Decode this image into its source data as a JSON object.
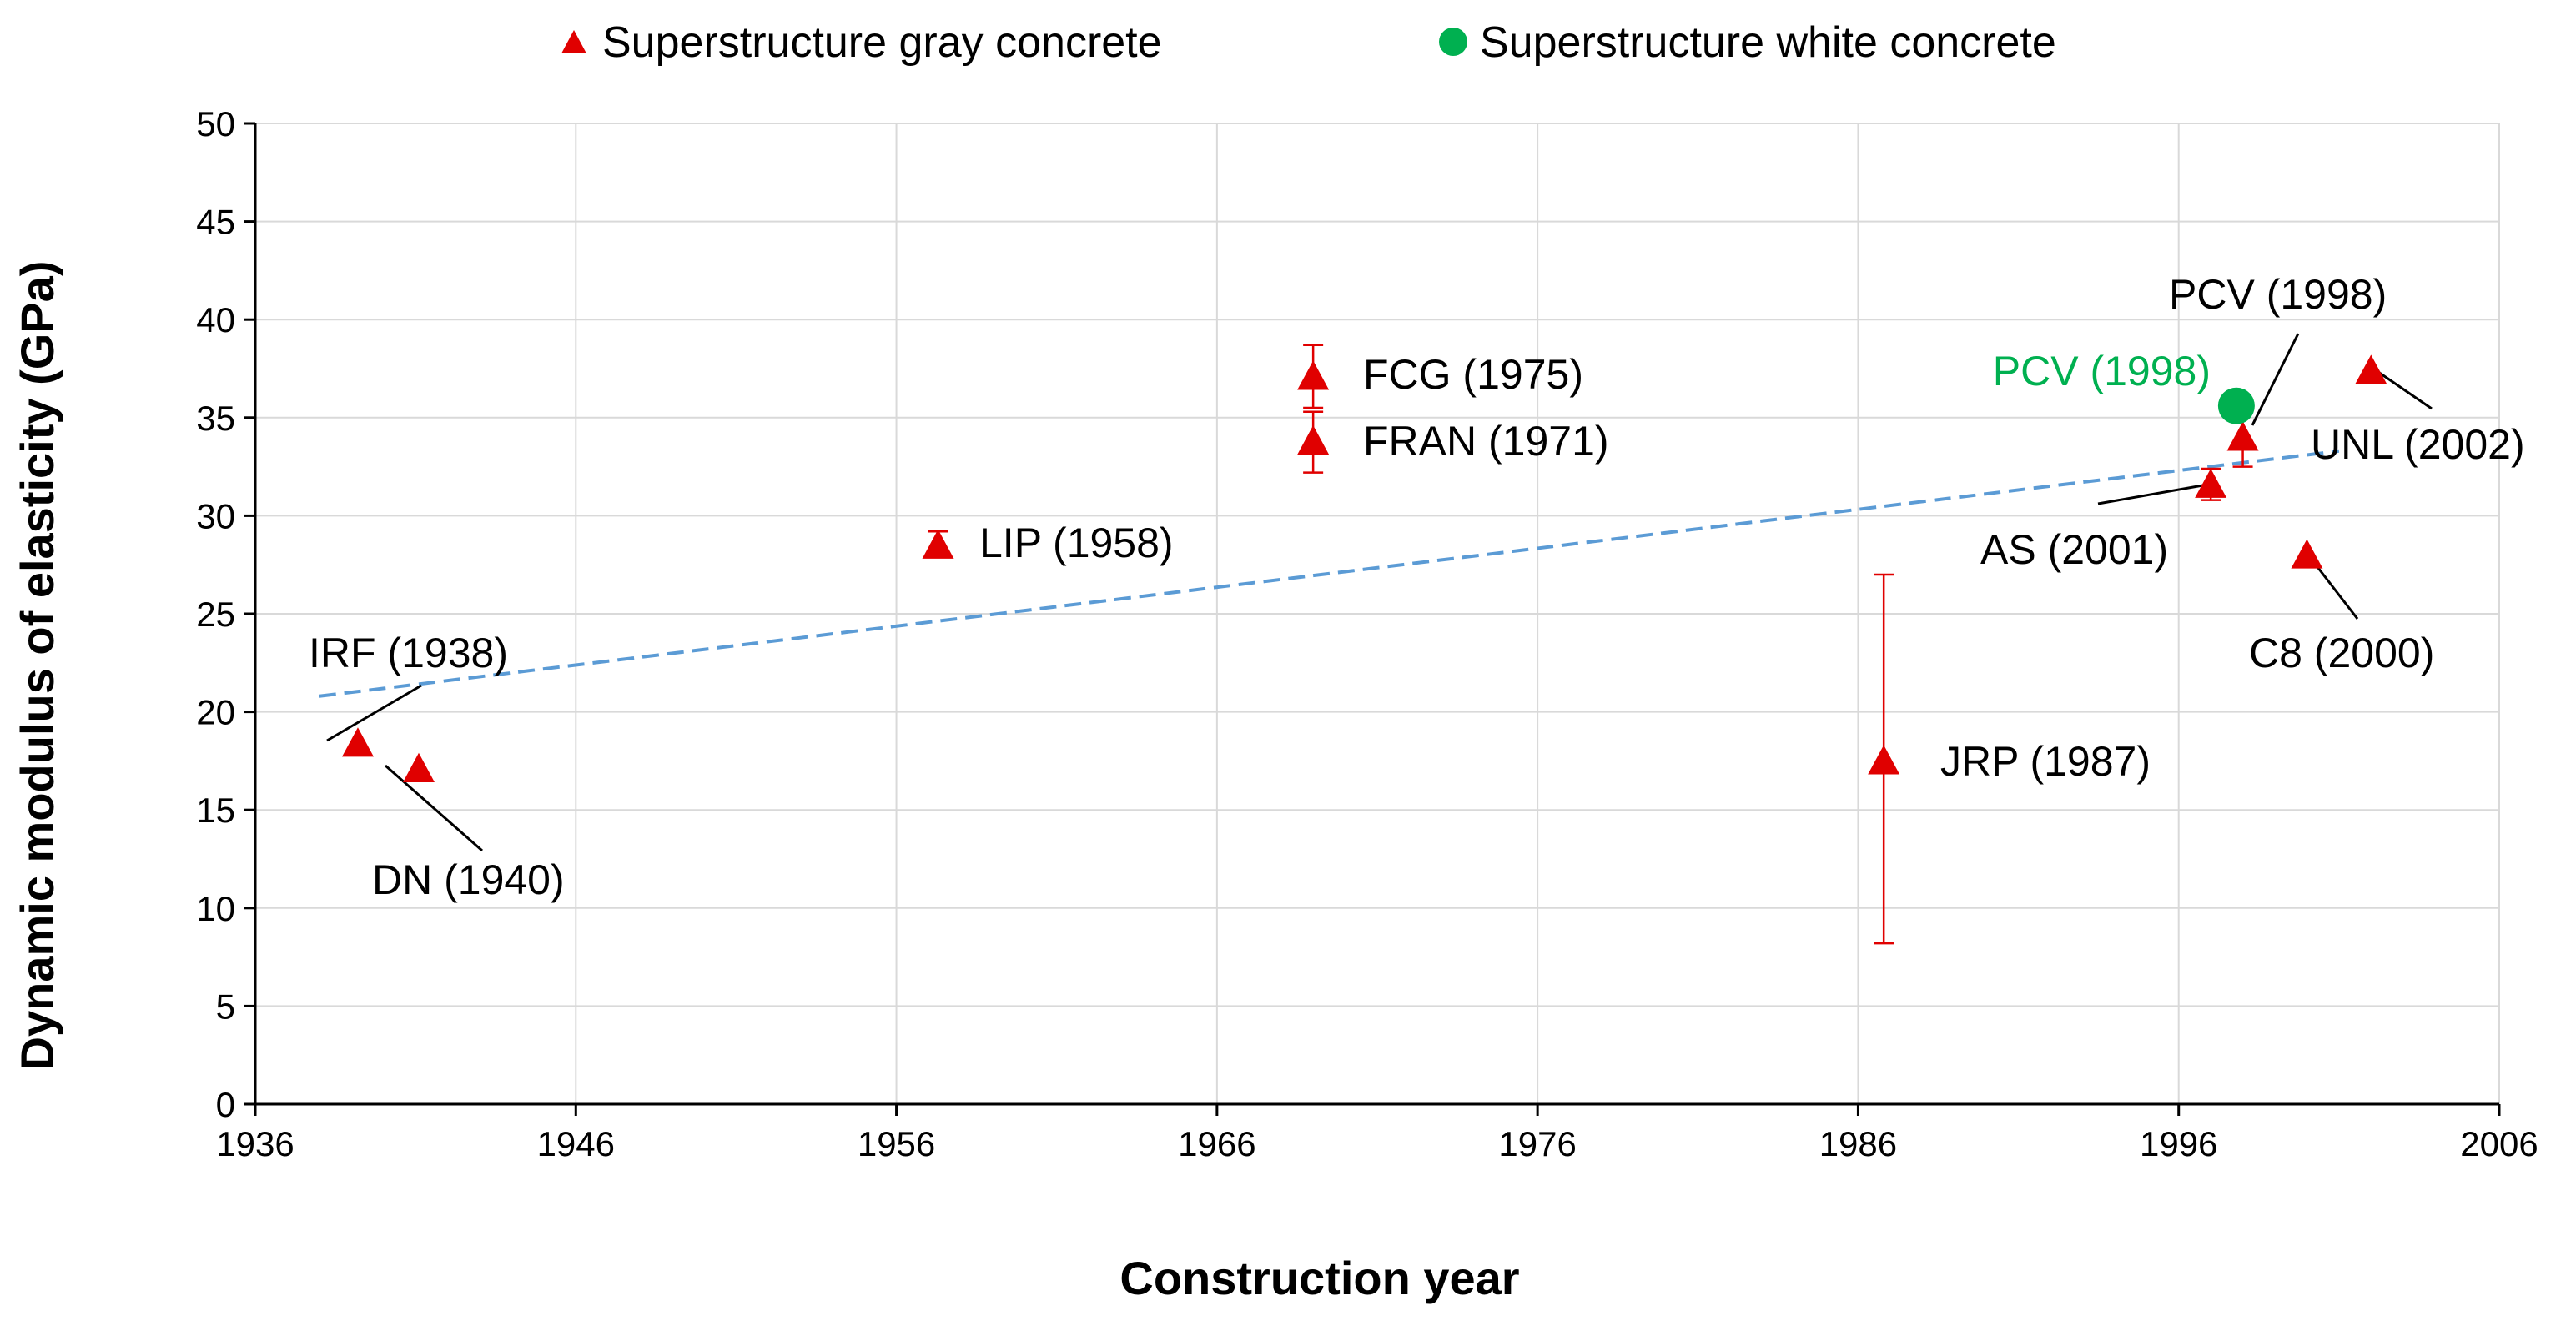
{
  "chart_data": {
    "type": "scatter",
    "title": "",
    "xlabel": "Construction year",
    "ylabel": "Dynamic modulus of elasticity (GPa)",
    "xlim": [
      1936,
      2006
    ],
    "ylim": [
      0,
      50
    ],
    "xticks": [
      1936,
      1946,
      1956,
      1966,
      1976,
      1986,
      1996,
      2006
    ],
    "yticks": [
      0,
      5,
      10,
      15,
      20,
      25,
      30,
      35,
      40,
      45,
      50
    ],
    "grid": true,
    "legend_position": "top",
    "colors": {
      "gray_series": "#e00000",
      "white_series": "#00b050",
      "trend": "#5b9bd5",
      "grid": "#d9d9d9"
    },
    "series": [
      {
        "name": "Superstructure gray concrete",
        "marker": "triangle",
        "points": [
          {
            "x": 1939.2,
            "y": 18.4,
            "label": "IRF (1938)"
          },
          {
            "x": 1941.1,
            "y": 17.1,
            "label": "DN (1940)"
          },
          {
            "x": 1957.3,
            "y": 28.5,
            "label": "LIP (1958)",
            "err_low": 28.0,
            "err_high": 29.2
          },
          {
            "x": 1969.0,
            "y": 37.1,
            "label": "FCG (1975)",
            "err_low": 35.5,
            "err_high": 38.7
          },
          {
            "x": 1969.0,
            "y": 33.8,
            "label": "FRAN (1971)",
            "err_low": 32.2,
            "err_high": 35.3
          },
          {
            "x": 1986.8,
            "y": 17.5,
            "label": "JRP (1987)",
            "err_low": 8.2,
            "err_high": 27.0
          },
          {
            "x": 1997.0,
            "y": 31.6,
            "label": "AS (2001)",
            "err_low": 30.8,
            "err_high": 32.4
          },
          {
            "x": 1998.0,
            "y": 34.0,
            "label": "PCV (1998)",
            "err_low": 32.5,
            "err_high": 35.5
          },
          {
            "x": 2000.0,
            "y": 28.0,
            "label": "C8 (2000)"
          },
          {
            "x": 2002.0,
            "y": 37.4,
            "label": "UNL (2002)"
          }
        ]
      },
      {
        "name": "Superstructure white concrete",
        "marker": "circle",
        "points": [
          {
            "x": 1997.8,
            "y": 35.6,
            "label": "PCV (1998)"
          }
        ]
      }
    ],
    "trendline": {
      "x": [
        1938,
        2001
      ],
      "y": [
        20.8,
        33.3
      ],
      "style": "dashed"
    }
  }
}
